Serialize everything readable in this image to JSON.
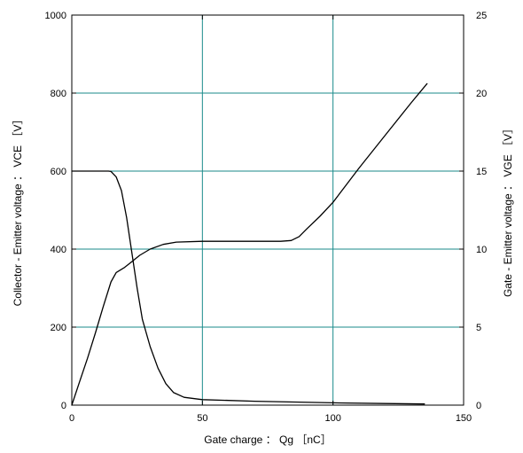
{
  "chart_data": {
    "type": "line",
    "xlabel": "Gate charge ： Qg ［nC］",
    "ylabel_left": "Collector - Emitter voltage ： VCE ［V］",
    "ylabel_right": "Gate - Emitter voltage ： VGE ［V］",
    "xlim": [
      0,
      150
    ],
    "ylim_left": [
      0,
      1000
    ],
    "ylim_right": [
      0,
      25
    ],
    "x_ticks": [
      0,
      50,
      100,
      150
    ],
    "y_left_ticks": [
      0,
      200,
      400,
      600,
      800,
      1000
    ],
    "y_right_ticks": [
      0,
      5,
      10,
      15,
      20,
      25
    ],
    "grid": true,
    "grid_color": "#1a8a8a",
    "line_color": "#000000",
    "series": [
      {
        "axis": "left",
        "points": [
          [
            0,
            600
          ],
          [
            14,
            600
          ],
          [
            15,
            599
          ],
          [
            17,
            585
          ],
          [
            19,
            550
          ],
          [
            21,
            480
          ],
          [
            23,
            390
          ],
          [
            25,
            300
          ],
          [
            27,
            220
          ],
          [
            30,
            150
          ],
          [
            33,
            95
          ],
          [
            36,
            55
          ],
          [
            39,
            32
          ],
          [
            43,
            20
          ],
          [
            50,
            14
          ],
          [
            70,
            10
          ],
          [
            100,
            6
          ],
          [
            120,
            4
          ],
          [
            135,
            3
          ]
        ]
      },
      {
        "axis": "right",
        "points": [
          [
            0,
            0
          ],
          [
            3,
            1.5
          ],
          [
            6,
            3
          ],
          [
            9,
            4.6
          ],
          [
            12,
            6.3
          ],
          [
            15,
            7.9
          ],
          [
            17,
            8.5
          ],
          [
            20,
            8.8
          ],
          [
            23,
            9.2
          ],
          [
            26,
            9.6
          ],
          [
            30,
            10
          ],
          [
            35,
            10.3
          ],
          [
            40,
            10.45
          ],
          [
            50,
            10.5
          ],
          [
            70,
            10.5
          ],
          [
            80,
            10.5
          ],
          [
            84,
            10.55
          ],
          [
            87,
            10.8
          ],
          [
            90,
            11.3
          ],
          [
            95,
            12.1
          ],
          [
            100,
            13
          ],
          [
            110,
            15.2
          ],
          [
            120,
            17.3
          ],
          [
            130,
            19.4
          ],
          [
            136,
            20.6
          ]
        ]
      }
    ]
  }
}
